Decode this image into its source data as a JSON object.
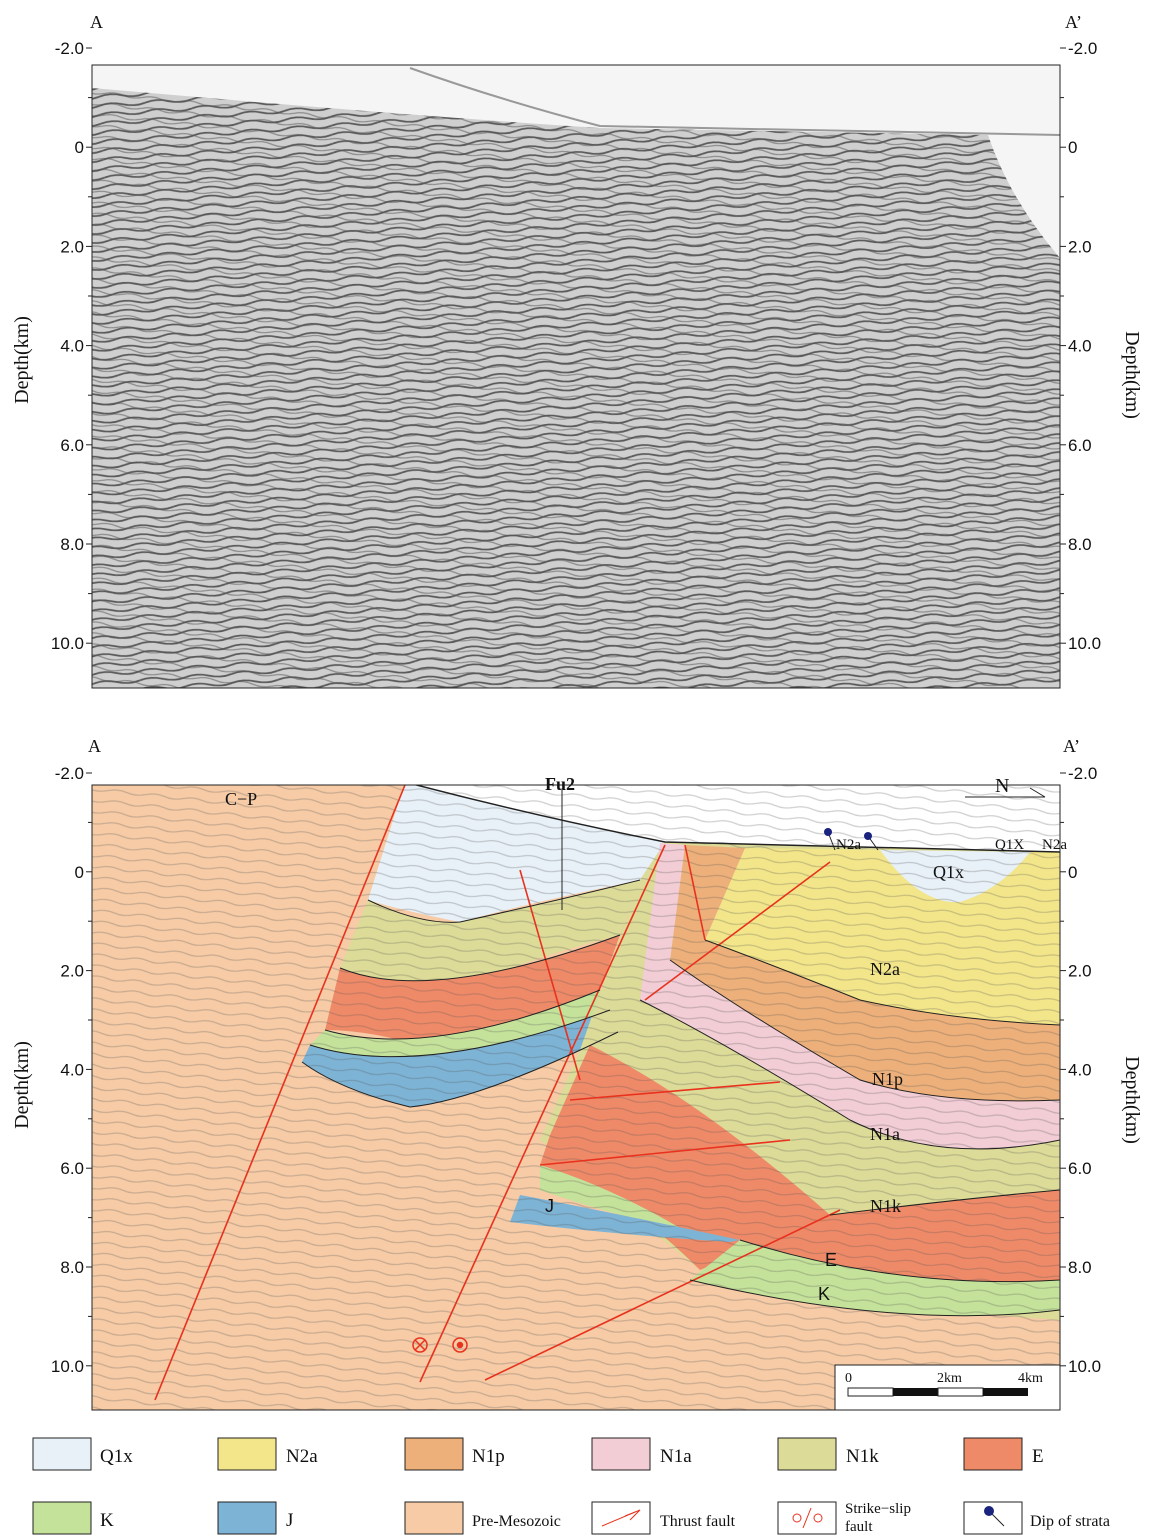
{
  "top_panel": {
    "left_label": "A",
    "right_label": "A’",
    "y_axis_title": "Depth(km)",
    "ticks": [
      "-2.0",
      "0",
      "2.0",
      "4.0",
      "6.0",
      "8.0",
      "10.0"
    ]
  },
  "bottom_panel": {
    "left_label": "A",
    "right_label": "A’",
    "y_axis_title": "Depth(km)",
    "ticks": [
      "-2.0",
      "0",
      "2.0",
      "4.0",
      "6.0",
      "8.0",
      "10.0"
    ],
    "well": "Fu2",
    "north": "N",
    "units": {
      "cp": "C−P",
      "q1x": "Q1x",
      "n2a": "N2a",
      "n1p": "N1p",
      "n1a": "N1a",
      "n1k": "N1k",
      "e": "E",
      "k": "K",
      "j": "J"
    },
    "surface_labels": [
      "N2a",
      "Q1X",
      "N2a"
    ],
    "scale_labels": [
      "0",
      "2km",
      "4km"
    ]
  },
  "legend": [
    "Q1x",
    "N2a",
    "N1p",
    "N1a",
    "N1k",
    "E",
    "K",
    "J",
    "Pre-Mesozoic",
    "Thrust fault",
    [
      "Strike−slip",
      "fault"
    ],
    "Dip of strata"
  ]
}
